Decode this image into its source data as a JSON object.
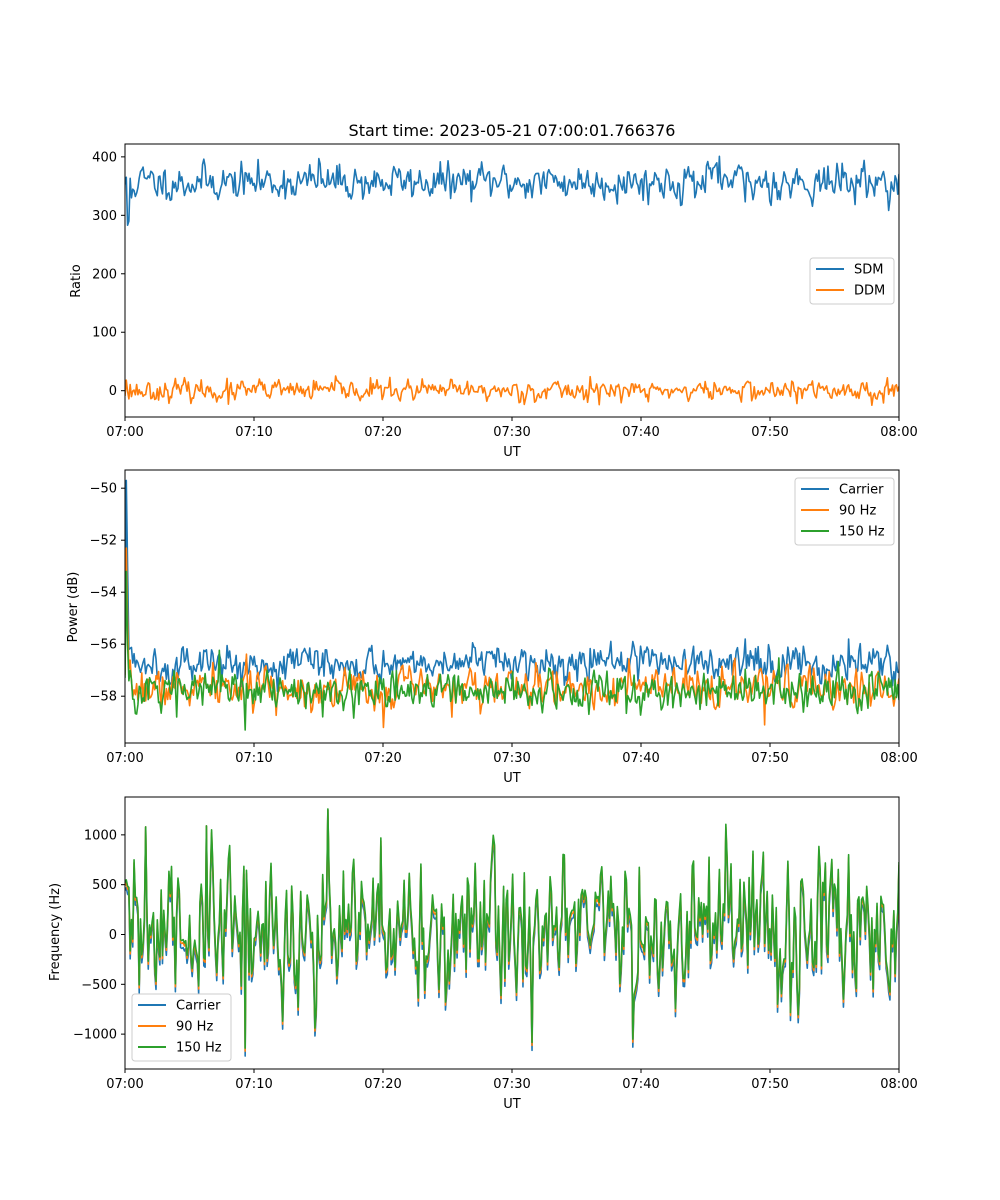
{
  "chart_data": [
    {
      "type": "line",
      "title": "Start time: 2023-05-21 07:00:01.766376",
      "xlabel": "UT",
      "ylabel": "Ratio",
      "xlim": [
        "07:00",
        "08:00"
      ],
      "ylim": [
        -45,
        422
      ],
      "xticks": [
        "07:00",
        "07:10",
        "07:20",
        "07:30",
        "07:40",
        "07:50",
        "08:00"
      ],
      "yticks": [
        0,
        100,
        200,
        300,
        400
      ],
      "legend": "center-right",
      "series": [
        {
          "name": "SDM",
          "color": "#1f77b4",
          "points": 600,
          "baseline": 357,
          "spread": 16,
          "seed": 11,
          "spikes": [
            [
              1,
              365
            ],
            [
              2,
              283
            ],
            [
              3,
              290
            ],
            [
              5,
              330
            ],
            [
              150,
              397
            ],
            [
              460,
              401
            ],
            [
              480,
              323
            ]
          ]
        },
        {
          "name": "DDM",
          "color": "#ff7f0e",
          "points": 600,
          "baseline": 0,
          "spread": 9,
          "seed": 23,
          "spikes": [
            [
              1,
              18
            ],
            [
              3,
              -14
            ],
            [
              80,
              -23
            ],
            [
              190,
              22
            ],
            [
              360,
              24
            ],
            [
              520,
              -22
            ],
            [
              590,
              22
            ]
          ]
        }
      ]
    },
    {
      "type": "line",
      "title": "",
      "xlabel": "UT",
      "ylabel": "Power (dB)",
      "xlim": [
        "07:00",
        "08:00"
      ],
      "ylim": [
        -59.8,
        -49.3
      ],
      "xticks": [
        "07:00",
        "07:10",
        "07:20",
        "07:30",
        "07:40",
        "07:50",
        "08:00"
      ],
      "yticks": [
        -50,
        -52,
        -54,
        -56,
        -58
      ],
      "legend": "top-right",
      "series": [
        {
          "name": "Carrier",
          "color": "#1f77b4",
          "points": 600,
          "baseline": -56.7,
          "spread": 0.35,
          "seed": 5,
          "spikes": [
            [
              1,
              -49.7
            ],
            [
              2,
              -53.0
            ],
            [
              3,
              -56.2
            ],
            [
              480,
              -55.8
            ],
            [
              560,
              -55.8
            ]
          ]
        },
        {
          "name": "90 Hz",
          "color": "#ff7f0e",
          "points": 600,
          "baseline": -57.7,
          "spread": 0.4,
          "seed": 7,
          "spikes": [
            [
              1,
              -52.3
            ],
            [
              2,
              -55.0
            ],
            [
              200,
              -59.2
            ],
            [
              495,
              -59.1
            ]
          ]
        },
        {
          "name": "150 Hz",
          "color": "#2ca02c",
          "points": 600,
          "baseline": -57.8,
          "spread": 0.4,
          "seed": 9,
          "spikes": [
            [
              1,
              -53.2
            ],
            [
              2,
              -56.0
            ],
            [
              93,
              -59.3
            ],
            [
              40,
              -58.8
            ]
          ]
        }
      ]
    },
    {
      "type": "line",
      "title": "",
      "xlabel": "UT",
      "ylabel": "Frequency (Hz)",
      "xlim": [
        "07:00",
        "08:00"
      ],
      "ylim": [
        -1350,
        1380
      ],
      "xticks": [
        "07:00",
        "07:10",
        "07:20",
        "07:30",
        "07:40",
        "07:50",
        "08:00"
      ],
      "yticks": [
        1000,
        500,
        0,
        -500,
        -1000
      ],
      "legend": "bottom-left",
      "series": [
        {
          "name": "Carrier",
          "color": "#1f77b4",
          "points": 600,
          "baseline": -40,
          "spread": 380,
          "seed": 31,
          "spikes": [
            [
              93,
              -1220
            ],
            [
              157,
              1250
            ],
            [
              393,
              -1130
            ],
            [
              16,
              1080
            ],
            [
              63,
              1090
            ]
          ]
        },
        {
          "name": "90 Hz",
          "color": "#ff7f0e",
          "points": 600,
          "baseline": 10,
          "spread": 380,
          "seed": 31,
          "spikes": [
            [
              93,
              -1170
            ],
            [
              157,
              1250
            ],
            [
              393,
              -1080
            ],
            [
              16,
              1080
            ],
            [
              63,
              1090
            ]
          ]
        },
        {
          "name": "150 Hz",
          "color": "#2ca02c",
          "points": 600,
          "baseline": 40,
          "spread": 380,
          "seed": 31,
          "spikes": [
            [
              93,
              -1140
            ],
            [
              157,
              1260
            ],
            [
              393,
              -1050
            ],
            [
              16,
              1080
            ],
            [
              63,
              1090
            ]
          ]
        }
      ]
    }
  ]
}
